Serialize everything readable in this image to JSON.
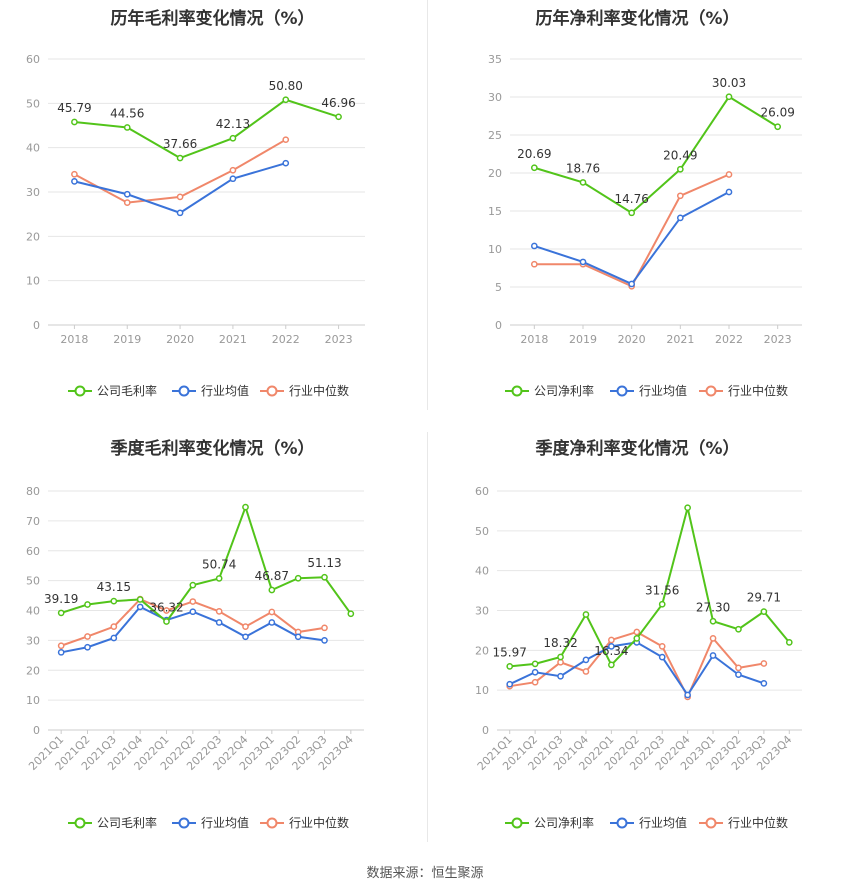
{
  "colors": {
    "company": "#52c41a",
    "avg": "#3a73d9",
    "median": "#f0876a",
    "grid": "#e6e6e6",
    "axis": "#999999"
  },
  "source": "数据来源：恒生聚源",
  "chart_data": [
    {
      "type": "line",
      "title": "历年毛利率变化情况（%）",
      "categories": [
        "2018",
        "2019",
        "2020",
        "2021",
        "2022",
        "2023"
      ],
      "ylim": [
        0,
        60
      ],
      "yticks": [
        "0",
        "10",
        "20",
        "30",
        "40",
        "50",
        "60"
      ],
      "grid": true,
      "legend_position": "bottom",
      "series": [
        {
          "name": "公司毛利率",
          "color": "#52c41a",
          "values": [
            45.79,
            44.56,
            37.66,
            42.13,
            50.8,
            46.96
          ],
          "labels": [
            "45.79",
            "44.56",
            "37.66",
            "42.13",
            "50.80",
            "46.96"
          ]
        },
        {
          "name": "行业均值",
          "color": "#3a73d9",
          "values": [
            32.4,
            29.5,
            25.3,
            33.0,
            36.5,
            null
          ],
          "labels": []
        },
        {
          "name": "行业中位数",
          "color": "#f0876a",
          "values": [
            34.0,
            27.6,
            28.9,
            34.9,
            41.8,
            null
          ],
          "labels": []
        }
      ]
    },
    {
      "type": "line",
      "title": "历年净利率变化情况（%）",
      "categories": [
        "2018",
        "2019",
        "2020",
        "2021",
        "2022",
        "2023"
      ],
      "ylim": [
        0,
        35
      ],
      "yticks": [
        "0",
        "5",
        "10",
        "15",
        "20",
        "25",
        "30",
        "35"
      ],
      "grid": true,
      "legend_position": "bottom",
      "series": [
        {
          "name": "公司净利率",
          "color": "#52c41a",
          "values": [
            20.69,
            18.76,
            14.76,
            20.49,
            30.03,
            26.09
          ],
          "labels": [
            "20.69",
            "18.76",
            "14.76",
            "20.49",
            "30.03",
            "26.09"
          ]
        },
        {
          "name": "行业均值",
          "color": "#3a73d9",
          "values": [
            10.4,
            8.3,
            5.4,
            14.1,
            17.5,
            null
          ],
          "labels": []
        },
        {
          "name": "行业中位数",
          "color": "#f0876a",
          "values": [
            8.0,
            8.0,
            5.1,
            17.0,
            19.8,
            null
          ],
          "labels": []
        }
      ]
    },
    {
      "type": "line",
      "title": "季度毛利率变化情况（%）",
      "categories": [
        "2021Q1",
        "2021Q2",
        "2021Q3",
        "2021Q4",
        "2022Q1",
        "2022Q2",
        "2022Q3",
        "2022Q4",
        "2023Q1",
        "2023Q2",
        "2023Q3",
        "2023Q4"
      ],
      "ylim": [
        0,
        80
      ],
      "yticks": [
        "0",
        "10",
        "20",
        "30",
        "40",
        "50",
        "60",
        "70",
        "80"
      ],
      "grid": true,
      "legend_position": "bottom",
      "series": [
        {
          "name": "公司毛利率",
          "color": "#52c41a",
          "values": [
            39.19,
            42.0,
            43.15,
            43.7,
            36.32,
            48.5,
            50.74,
            74.6,
            46.87,
            50.8,
            51.13,
            38.9
          ],
          "labels": [
            "39.19",
            "",
            "43.15",
            "",
            "36.32",
            "",
            "50.74",
            "",
            "46.87",
            "",
            "51.13",
            ""
          ]
        },
        {
          "name": "行业均值",
          "color": "#3a73d9",
          "values": [
            26.0,
            27.7,
            30.8,
            41.2,
            36.8,
            39.6,
            36.0,
            31.2,
            36.0,
            31.2,
            30.0,
            null
          ],
          "labels": []
        },
        {
          "name": "行业中位数",
          "color": "#f0876a",
          "values": [
            28.2,
            31.3,
            34.6,
            43.8,
            40.0,
            43.0,
            39.7,
            34.6,
            39.5,
            32.8,
            34.2,
            null
          ],
          "labels": []
        }
      ]
    },
    {
      "type": "line",
      "title": "季度净利率变化情况（%）",
      "categories": [
        "2021Q1",
        "2021Q2",
        "2021Q3",
        "2021Q4",
        "2022Q1",
        "2022Q2",
        "2022Q3",
        "2022Q4",
        "2023Q1",
        "2023Q2",
        "2023Q3",
        "2023Q4"
      ],
      "ylim": [
        0,
        60
      ],
      "yticks": [
        "0",
        "10",
        "20",
        "30",
        "40",
        "50",
        "60"
      ],
      "grid": true,
      "legend_position": "bottom",
      "series": [
        {
          "name": "公司净利率",
          "color": "#52c41a",
          "values": [
            15.97,
            16.6,
            18.32,
            29.0,
            16.34,
            23.0,
            31.56,
            55.8,
            27.3,
            25.3,
            29.71,
            22.0
          ],
          "labels": [
            "15.97",
            "",
            "18.32",
            "",
            "16.34",
            "",
            "31.56",
            "",
            "27.30",
            "",
            "29.71",
            ""
          ]
        },
        {
          "name": "行业均值",
          "color": "#3a73d9",
          "values": [
            11.5,
            14.5,
            13.5,
            17.6,
            21.0,
            22.0,
            18.3,
            8.8,
            18.7,
            13.9,
            11.7,
            null
          ],
          "labels": []
        },
        {
          "name": "行业中位数",
          "color": "#f0876a",
          "values": [
            11.0,
            12.0,
            17.0,
            14.7,
            22.6,
            24.6,
            21.0,
            8.3,
            23.0,
            15.6,
            16.7,
            null
          ],
          "labels": []
        }
      ]
    }
  ]
}
